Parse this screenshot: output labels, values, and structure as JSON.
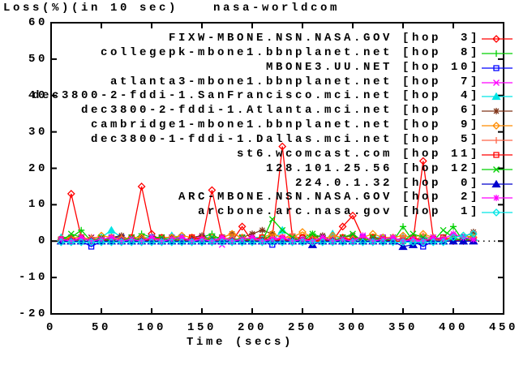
{
  "chart_data": {
    "type": "line",
    "title": "Loss(%)(in 10 sec)",
    "subtitle": "nasa-worldcom",
    "xlabel": "Time (secs)",
    "ylabel": "",
    "xlim": [
      0,
      450
    ],
    "ylim": [
      -20,
      60
    ],
    "xticks": [
      0,
      50,
      100,
      150,
      200,
      250,
      300,
      350,
      400,
      450
    ],
    "yticks": [
      -20,
      -10,
      0,
      10,
      20,
      30,
      40,
      50,
      60
    ],
    "grid": "off",
    "zero_line": "dotted",
    "legend_position": "top-right-inside",
    "x": [
      10,
      20,
      30,
      40,
      50,
      60,
      70,
      80,
      90,
      100,
      110,
      120,
      130,
      140,
      150,
      160,
      170,
      180,
      190,
      200,
      210,
      220,
      230,
      240,
      250,
      260,
      270,
      280,
      290,
      300,
      310,
      320,
      330,
      340,
      350,
      360,
      370,
      380,
      390,
      400,
      410,
      420
    ],
    "series": [
      {
        "label": "FIXW-MBONE.NSN.NASA.GOV [hop  3]",
        "hop": 3,
        "color": "#ff0000",
        "marker": "diamond",
        "values": [
          0,
          13,
          1,
          0,
          0,
          1,
          0,
          1,
          15,
          2,
          0,
          1,
          0,
          1,
          0,
          14,
          1,
          0,
          4,
          0,
          1,
          1,
          26,
          1,
          1,
          0,
          0,
          0,
          4,
          7,
          1,
          0,
          0,
          0,
          0,
          0,
          22,
          1,
          0,
          0,
          0,
          1
        ]
      },
      {
        "label": "collegepk-mbone1.bbnplanet.net [hop  8]",
        "hop": 8,
        "color": "#00d000",
        "marker": "plus",
        "values": [
          1,
          1,
          3,
          0,
          1,
          0,
          1,
          0,
          2,
          1,
          0,
          1,
          1,
          0,
          1,
          2,
          0,
          1,
          0,
          1,
          0,
          2,
          1,
          0,
          1,
          2,
          0,
          1,
          0,
          1,
          0,
          1,
          0,
          0,
          4,
          0,
          1,
          0,
          1,
          4,
          0,
          2
        ]
      },
      {
        "label": "MBONE3.UU.NET [hop 10]",
        "hop": 10,
        "color": "#0000ff",
        "marker": "square",
        "values": [
          0,
          1,
          0,
          -1.5,
          0,
          1,
          1,
          0,
          0,
          1,
          1,
          0,
          1,
          0,
          1,
          1,
          0,
          0,
          1,
          0,
          0,
          -1,
          0,
          1,
          0,
          0,
          1,
          0,
          0,
          0,
          1,
          0,
          1,
          0,
          0,
          0,
          -1.5,
          0,
          1,
          0,
          1,
          0
        ]
      },
      {
        "label": "atlanta3-mbone1.bbnplanet.net [hop  7]",
        "hop": 7,
        "color": "#ff00ff",
        "marker": "x",
        "values": [
          0,
          1,
          0,
          1,
          1,
          0,
          0,
          1,
          0,
          1,
          0,
          1,
          0,
          1,
          1,
          0,
          -1,
          0,
          1,
          0,
          1,
          0,
          1,
          1,
          0,
          -1,
          0,
          1,
          0,
          0,
          1.5,
          0,
          1,
          0,
          1,
          0,
          0,
          1,
          0,
          1,
          0,
          1
        ]
      },
      {
        "label": "dec3800-2-fddi-1.SanFrancisco.mci.net [hop  4]",
        "hop": 4,
        "color": "#00e5e5",
        "marker": "triangle",
        "values": [
          1,
          0,
          1,
          0,
          1,
          3,
          1,
          0,
          1,
          1,
          0,
          1.5,
          1,
          0,
          1,
          1,
          0,
          1,
          0,
          1,
          1,
          0,
          3,
          1,
          0,
          1,
          0,
          2,
          0,
          1,
          0,
          1,
          1,
          0,
          1,
          0,
          1,
          1,
          0,
          1,
          0,
          1
        ]
      },
      {
        "label": "dec3800-2-fddi-1.Atlanta.mci.net [hop  6]",
        "hop": 6,
        "color": "#803519",
        "marker": "asterisk",
        "values": [
          0,
          1,
          0,
          1,
          0,
          1,
          1.5,
          0,
          1,
          0,
          1,
          1,
          0,
          1,
          1.5,
          0,
          1,
          2,
          1,
          2,
          3,
          2,
          1,
          1,
          0,
          1,
          1.5,
          0,
          1,
          1.5,
          0,
          1,
          0,
          1,
          0,
          1,
          0,
          1,
          0,
          1.5,
          1,
          2.5
        ]
      },
      {
        "label": "cambridge1-mbone1.bbnplanet.net [hop  9]",
        "hop": 9,
        "color": "#ff8c00",
        "marker": "diamond",
        "values": [
          0.5,
          1,
          1,
          0.5,
          1.5,
          1,
          0.5,
          1,
          1,
          0.5,
          1,
          1,
          1.5,
          1,
          0.5,
          1,
          1,
          2,
          1,
          0.5,
          1,
          2,
          1,
          1,
          2.5,
          1,
          0.5,
          1.5,
          1,
          0.5,
          1,
          2,
          1,
          1,
          1.5,
          1,
          2,
          1,
          0.5,
          1,
          1.5,
          1
        ]
      },
      {
        "label": "dec3800-1-fddi-1.Dallas.mci.net [hop  5]",
        "hop": 5,
        "color": "#ff6347",
        "marker": "plus",
        "values": [
          0,
          0.5,
          0,
          1,
          0,
          0.5,
          1,
          0,
          0.5,
          0,
          1,
          0,
          0.5,
          0,
          1,
          0,
          0.5,
          1,
          0,
          0.5,
          0,
          1,
          0.5,
          2,
          0,
          0.5,
          0,
          1,
          0,
          0.5,
          1,
          0,
          0.5,
          0,
          1,
          0,
          1.5,
          0.5,
          0,
          1,
          0,
          0.5
        ]
      },
      {
        "label": "st6.wcomcast.com [hop 11]",
        "hop": 11,
        "color": "#ff0000",
        "marker": "square",
        "values": [
          0.5,
          0,
          1,
          0,
          0.5,
          0,
          0,
          1,
          0,
          0.5,
          1,
          0,
          0,
          1,
          0.5,
          0,
          1,
          0,
          0,
          0.5,
          1,
          0,
          0.5,
          0,
          1,
          0,
          0.5,
          0,
          1,
          0,
          0,
          1,
          0.5,
          0,
          0,
          1,
          0,
          0.5,
          1,
          0,
          0.5,
          0
        ]
      },
      {
        "label": "128.101.25.56 [hop 12]",
        "hop": 12,
        "color": "#00d000",
        "marker": "x",
        "values": [
          0,
          2,
          1,
          0,
          1,
          0,
          0,
          1,
          0,
          1,
          1,
          0,
          1,
          0,
          0,
          1,
          1,
          0,
          1,
          0,
          0,
          6,
          3,
          1,
          0,
          2,
          1,
          0,
          1,
          2,
          0,
          1,
          0,
          1,
          0,
          2,
          1,
          0,
          3,
          1,
          0,
          1
        ]
      },
      {
        "label": "224.0.1.32 [hop  0]",
        "hop": 0,
        "color": "#0000cd",
        "marker": "triangle",
        "values": [
          0,
          0,
          0,
          0,
          0,
          0,
          0,
          0,
          0,
          0,
          0,
          0,
          0,
          0,
          0,
          0,
          0,
          0,
          0,
          0,
          0,
          0,
          0,
          0,
          0,
          -1,
          0,
          0,
          0,
          0,
          0,
          0,
          0,
          0,
          -1.5,
          -1,
          0,
          0,
          0,
          0,
          0,
          0
        ]
      },
      {
        "label": "ARC-MBONE.NSN.NASA.GOV [hop  2]",
        "hop": 2,
        "color": "#ff00ff",
        "marker": "asterisk",
        "values": [
          0.5,
          0,
          1,
          0,
          0.5,
          1,
          0,
          0.5,
          0,
          1,
          0,
          0.5,
          1,
          0,
          0.5,
          0,
          1,
          0,
          0.5,
          1,
          0,
          0.5,
          1,
          0,
          0.5,
          0,
          1,
          0,
          0.5,
          0,
          1.5,
          0,
          0.5,
          1,
          0,
          0.5,
          0,
          1,
          0.5,
          2,
          1,
          0.5
        ]
      },
      {
        "label": "arcbone.arc.nasa.gov [hop  1]",
        "hop": 1,
        "color": "#00e5e5",
        "marker": "diamond",
        "values": [
          -0.3,
          -0.3,
          -0.3,
          -0.3,
          -0.3,
          -0.3,
          -0.3,
          -0.3,
          -0.3,
          -0.3,
          -0.3,
          -0.3,
          -0.3,
          -0.3,
          -0.3,
          -0.3,
          -0.3,
          -0.3,
          -0.3,
          -0.3,
          -0.3,
          -0.3,
          -0.3,
          -0.3,
          -0.3,
          -0.3,
          -0.3,
          -0.3,
          -0.3,
          -0.3,
          -0.3,
          -0.3,
          -0.3,
          -0.3,
          -0.3,
          -0.3,
          -0.3,
          -0.3,
          -0.3,
          1,
          1.5,
          2
        ]
      }
    ],
    "frame_color": "#000000",
    "background_color": "#ffffff"
  }
}
